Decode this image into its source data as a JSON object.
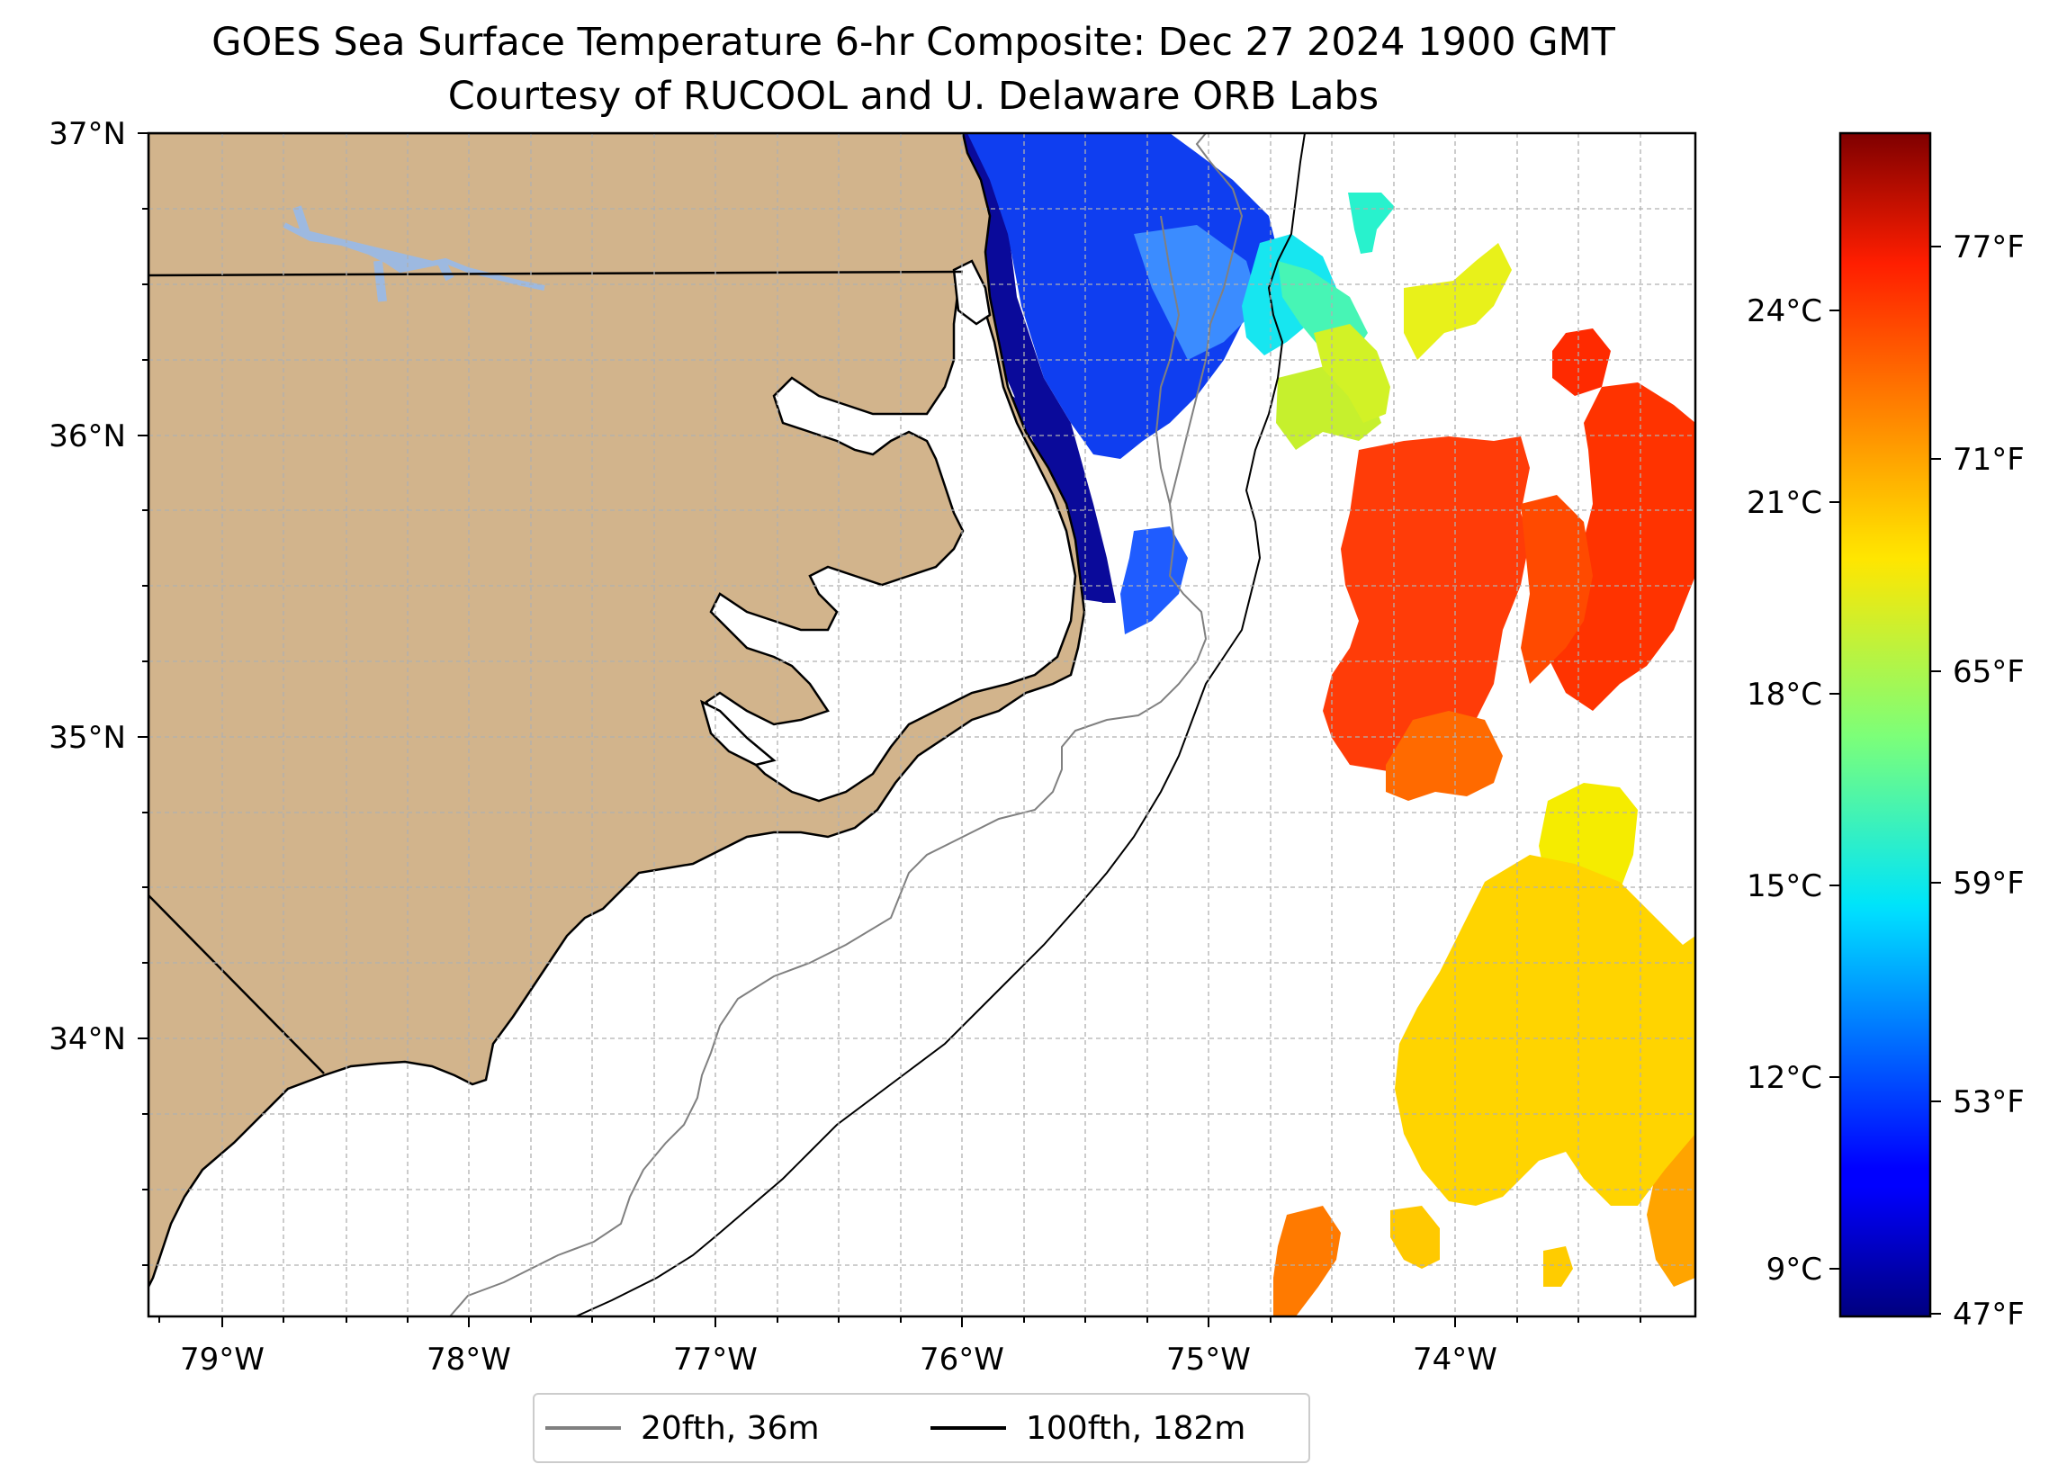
{
  "title": "GOES Sea Surface Temperature 6-hr Composite: Dec 27 2024 1900 GMT",
  "subtitle": "Courtesy of RUCOOL and U. Delaware ORB Labs",
  "map": {
    "lon_range": [
      -79.3,
      -73.0
    ],
    "lat_range": [
      33.1,
      37.0
    ],
    "lon_ticks": [
      "79°W",
      "78°W",
      "77°W",
      "76°W",
      "75°W",
      "74°W"
    ],
    "lat_ticks": [
      "37°N",
      "36°N",
      "35°N",
      "34°N"
    ]
  },
  "legend": {
    "items": [
      {
        "label": "20fth, 36m",
        "color": "#808080"
      },
      {
        "label": "100fth, 182m",
        "color": "#000000"
      }
    ]
  },
  "colorbar": {
    "colormap": "jet",
    "range_f": [
      46.7,
      81.0
    ],
    "celsius_ticks": [
      "9°C",
      "12°C",
      "15°C",
      "18°C",
      "21°C",
      "24°C"
    ],
    "fahrenheit_ticks": [
      "47°F",
      "53°F",
      "59°F",
      "65°F",
      "71°F",
      "77°F"
    ]
  },
  "colors": {
    "land": "#d2b48c",
    "lake": "#9db9e0",
    "isobath_20": "#808080",
    "isobath_100": "#000000"
  }
}
